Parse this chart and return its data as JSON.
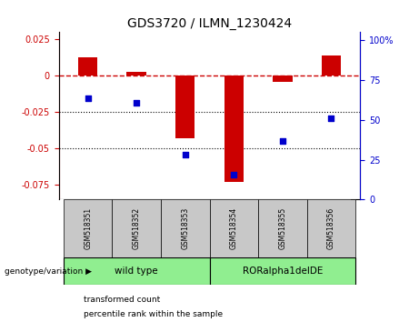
{
  "title": "GDS3720 / ILMN_1230424",
  "samples": [
    "GSM518351",
    "GSM518352",
    "GSM518353",
    "GSM518354",
    "GSM518355",
    "GSM518356"
  ],
  "bar_values": [
    0.013,
    0.003,
    -0.043,
    -0.073,
    -0.004,
    0.014
  ],
  "scatter_pct": [
    63.5,
    61.0,
    28.5,
    15.5,
    37.0,
    51.0
  ],
  "bar_color": "#CC0000",
  "scatter_color": "#0000CC",
  "dashed_line_color": "#CC0000",
  "ylim_left": [
    -0.085,
    0.03
  ],
  "ylim_right": [
    0,
    105
  ],
  "yticks_left": [
    0.025,
    0.0,
    -0.025,
    -0.05,
    -0.075
  ],
  "yticks_right": [
    100,
    75,
    50,
    25,
    0
  ],
  "group1_label": "wild type",
  "group2_label": "RORalpha1delDE",
  "group1_indices": [
    0,
    1,
    2
  ],
  "group2_indices": [
    3,
    4,
    5
  ],
  "group1_color": "#90EE90",
  "group2_color": "#90EE90",
  "genotype_label": "genotype/variation",
  "legend_bar_label": "transformed count",
  "legend_scatter_label": "percentile rank within the sample",
  "bar_width": 0.4,
  "background_color": "#ffffff",
  "plot_bg_color": "#ffffff",
  "header_bg_color": "#c8c8c8",
  "ytick_left_color": "#CC0000",
  "ytick_right_color": "#0000CC"
}
